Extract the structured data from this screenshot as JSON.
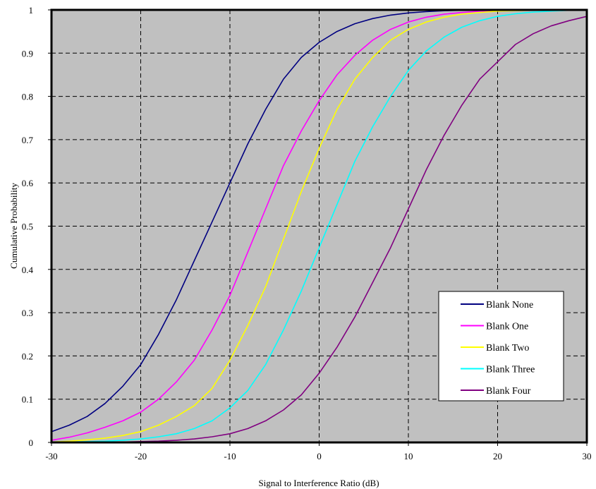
{
  "chart_data": {
    "type": "line",
    "title": "",
    "xlabel": "Signal to Interference Ratio (dB)",
    "ylabel": "Cumulative Probability",
    "xlim": [
      -30,
      30
    ],
    "ylim": [
      0,
      1
    ],
    "x_ticks": [
      "-30",
      "-20",
      "-10",
      "0",
      "10",
      "20",
      "30"
    ],
    "y_ticks": [
      "0",
      "0.1",
      "0.2",
      "0.3",
      "0.4",
      "0.5",
      "0.6",
      "0.7",
      "0.8",
      "0.9",
      "1"
    ],
    "grid": true,
    "legend_position": "bottom-right",
    "plot_background": "#c0c0c0",
    "x": [
      -30,
      -28,
      -26,
      -24,
      -22,
      -20,
      -18,
      -16,
      -14,
      -12,
      -10,
      -8,
      -6,
      -4,
      -2,
      0,
      2,
      4,
      6,
      8,
      10,
      12,
      14,
      16,
      18,
      20,
      22,
      24,
      26,
      28,
      30
    ],
    "series": [
      {
        "name": "Blank None",
        "color": "#000080",
        "values": [
          0.025,
          0.04,
          0.06,
          0.09,
          0.13,
          0.18,
          0.25,
          0.33,
          0.42,
          0.51,
          0.6,
          0.69,
          0.77,
          0.84,
          0.89,
          0.925,
          0.95,
          0.968,
          0.98,
          0.988,
          0.993,
          0.996,
          0.998,
          0.999,
          0.9995,
          1.0,
          1.0,
          1.0,
          1.0,
          1.0,
          1.0
        ]
      },
      {
        "name": "Blank One",
        "color": "#ff00ff",
        "values": [
          0.005,
          0.012,
          0.022,
          0.035,
          0.05,
          0.07,
          0.1,
          0.14,
          0.19,
          0.26,
          0.34,
          0.44,
          0.54,
          0.64,
          0.72,
          0.79,
          0.85,
          0.895,
          0.93,
          0.955,
          0.972,
          0.983,
          0.99,
          0.994,
          0.997,
          0.998,
          0.999,
          1.0,
          1.0,
          1.0,
          1.0
        ]
      },
      {
        "name": "Blank Two",
        "color": "#ffff00",
        "values": [
          0.001,
          0.003,
          0.006,
          0.01,
          0.016,
          0.025,
          0.04,
          0.06,
          0.085,
          0.125,
          0.19,
          0.27,
          0.36,
          0.47,
          0.58,
          0.68,
          0.77,
          0.84,
          0.89,
          0.93,
          0.955,
          0.972,
          0.983,
          0.99,
          0.994,
          0.997,
          0.998,
          0.999,
          1.0,
          1.0,
          1.0
        ]
      },
      {
        "name": "Blank Three",
        "color": "#00ffff",
        "values": [
          0.0,
          0.001,
          0.002,
          0.003,
          0.005,
          0.008,
          0.013,
          0.02,
          0.032,
          0.05,
          0.08,
          0.12,
          0.18,
          0.26,
          0.35,
          0.45,
          0.55,
          0.65,
          0.73,
          0.8,
          0.86,
          0.905,
          0.937,
          0.96,
          0.975,
          0.985,
          0.991,
          0.995,
          0.997,
          0.999,
          1.0
        ]
      },
      {
        "name": "Blank Four",
        "color": "#800080",
        "values": [
          0.0,
          0.0,
          0.0,
          0.0005,
          0.001,
          0.002,
          0.003,
          0.005,
          0.008,
          0.013,
          0.02,
          0.032,
          0.05,
          0.075,
          0.11,
          0.16,
          0.22,
          0.29,
          0.37,
          0.45,
          0.54,
          0.63,
          0.71,
          0.78,
          0.84,
          0.88,
          0.92,
          0.945,
          0.963,
          0.975,
          0.985
        ]
      }
    ]
  }
}
